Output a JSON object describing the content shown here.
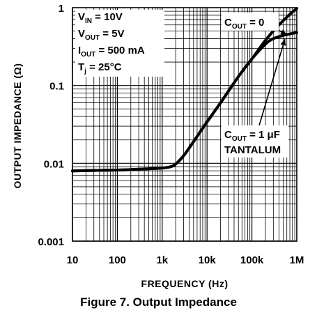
{
  "caption": "Figure 7. Output Impedance",
  "chart_data": {
    "type": "line",
    "xlabel": "FREQUENCY (Hz)",
    "ylabel": "OUTPUT IMPEDANCE (Ω)",
    "xscale": "log",
    "yscale": "log",
    "xlim": [
      10,
      1000000
    ],
    "ylim": [
      0.001,
      1
    ],
    "grid": true,
    "x_ticks": [
      {
        "value": 10,
        "label": "10"
      },
      {
        "value": 100,
        "label": "100"
      },
      {
        "value": 1000,
        "label": "1k"
      },
      {
        "value": 10000,
        "label": "10k"
      },
      {
        "value": 100000,
        "label": "100k"
      },
      {
        "value": 1000000,
        "label": "1M"
      }
    ],
    "y_ticks": [
      {
        "value": 0.001,
        "label": "0.001"
      },
      {
        "value": 0.01,
        "label": "0.01"
      },
      {
        "value": 0.1,
        "label": "0.1"
      },
      {
        "value": 1,
        "label": "1"
      }
    ],
    "conditions": [
      {
        "main": "V",
        "sub": "IN",
        "rest": " = 10V"
      },
      {
        "main": "V",
        "sub": "OUT",
        "rest": " = 5V"
      },
      {
        "main": "I",
        "sub": "OUT",
        "rest": " = 500 mA"
      },
      {
        "main": "T",
        "sub": "j",
        "rest": " = 25°C"
      }
    ],
    "series": [
      {
        "label": {
          "main": "C",
          "sub": "OUT",
          "rest": " = 0"
        },
        "x": [
          10,
          100,
          500,
          1000,
          1500,
          2000,
          3000,
          5000,
          10000,
          20000,
          50000,
          100000,
          200000,
          400000,
          700000,
          1000000
        ],
        "y": [
          0.008,
          0.0082,
          0.0085,
          0.0087,
          0.009,
          0.0098,
          0.0125,
          0.019,
          0.034,
          0.06,
          0.13,
          0.22,
          0.38,
          0.6,
          0.82,
          0.98
        ]
      },
      {
        "label": {
          "main": "C",
          "sub": "OUT",
          "rest": " = 1 μF",
          "line2": "TANTALUM"
        },
        "x": [
          10,
          100,
          500,
          1000,
          1500,
          2000,
          3000,
          5000,
          10000,
          20000,
          50000,
          100000,
          200000,
          300000,
          500000,
          700000,
          1000000
        ],
        "y": [
          0.008,
          0.0082,
          0.0085,
          0.0087,
          0.009,
          0.0098,
          0.0125,
          0.019,
          0.034,
          0.06,
          0.13,
          0.22,
          0.34,
          0.4,
          0.44,
          0.46,
          0.48
        ]
      }
    ]
  }
}
